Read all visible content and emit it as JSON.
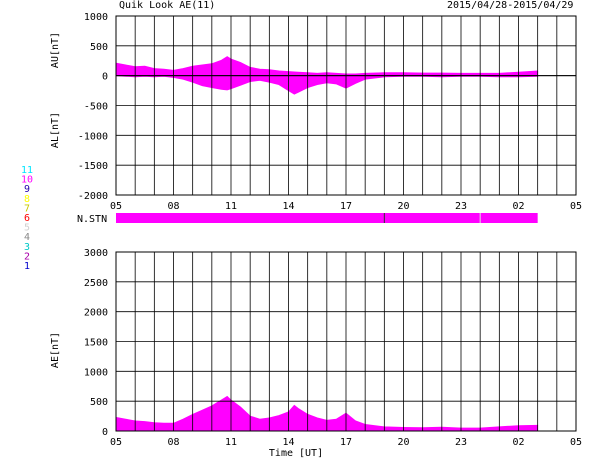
{
  "header": {
    "title": "Quik Look AE(11)",
    "date_range": "2015/04/28-2015/04/29"
  },
  "colors": {
    "fill": "#ff00ff",
    "grid": "#000000",
    "background": "#ffffff"
  },
  "station_count_legend": [
    {
      "label": "11",
      "color": "#00e5ff"
    },
    {
      "label": "10",
      "color": "#ff00ff"
    },
    {
      "label": "9",
      "color": "#2200aa"
    },
    {
      "label": "8",
      "color": "#ffff00"
    },
    {
      "label": "7",
      "color": "#c8c800"
    },
    {
      "label": "6",
      "color": "#ff0000"
    },
    {
      "label": "5",
      "color": "#d0d0d0"
    },
    {
      "label": "4",
      "color": "#888888"
    },
    {
      "label": "3",
      "color": "#00c8c8"
    },
    {
      "label": "2",
      "color": "#aa00aa"
    },
    {
      "label": "1",
      "color": "#0000cc"
    }
  ],
  "chart_data": [
    {
      "type": "area",
      "name": "au-al-panel",
      "ylabel_upper": "AU[nT]",
      "ylabel_lower": "AL[nT]",
      "ylim": [
        -2000,
        1000
      ],
      "yticks": [
        "1000",
        "500",
        "0",
        "-500",
        "-1000",
        "-1500",
        "-2000"
      ],
      "xticks": [
        "05",
        "08",
        "11",
        "14",
        "17",
        "20",
        "23",
        "02",
        "05"
      ],
      "x_range_hours": [
        5,
        29
      ],
      "grid": true,
      "series": [
        {
          "name": "AU",
          "x": [
            5.0,
            5.5,
            6.0,
            6.5,
            7.0,
            7.5,
            8.0,
            8.5,
            9.0,
            9.5,
            10.0,
            10.5,
            10.8,
            11.0,
            11.5,
            12.0,
            12.5,
            13.0,
            13.5,
            14.0,
            14.5,
            15.0,
            15.5,
            16.0,
            16.5,
            17.0,
            17.5,
            18.0,
            19.0,
            20.0,
            21.0,
            22.0,
            23.0,
            24.0,
            25.0,
            26.0,
            27.0
          ],
          "values": [
            210,
            180,
            150,
            160,
            120,
            110,
            90,
            120,
            160,
            180,
            200,
            260,
            320,
            280,
            220,
            140,
            110,
            100,
            80,
            70,
            60,
            50,
            40,
            50,
            40,
            30,
            30,
            40,
            50,
            50,
            45,
            45,
            40,
            40,
            40,
            60,
            80
          ]
        },
        {
          "name": "AL",
          "x": [
            5.0,
            5.5,
            6.0,
            6.5,
            7.0,
            7.5,
            8.0,
            8.5,
            9.0,
            9.5,
            10.0,
            10.5,
            10.8,
            11.0,
            11.5,
            12.0,
            12.5,
            13.0,
            13.5,
            14.0,
            14.3,
            14.5,
            15.0,
            15.5,
            16.0,
            16.5,
            17.0,
            17.5,
            18.0,
            19.0,
            20.0,
            21.0,
            22.0,
            23.0,
            24.0,
            25.0,
            26.0,
            27.0
          ],
          "values": [
            0,
            -10,
            -20,
            -10,
            -20,
            -10,
            -30,
            -60,
            -110,
            -170,
            -200,
            -230,
            -240,
            -220,
            -160,
            -100,
            -80,
            -110,
            -150,
            -250,
            -310,
            -280,
            -200,
            -150,
            -120,
            -140,
            -210,
            -130,
            -60,
            -20,
            -10,
            -10,
            -20,
            -10,
            -10,
            -20,
            -20,
            -10
          ]
        }
      ]
    },
    {
      "type": "bar",
      "name": "station-count-strip",
      "ylabel": "N.STN",
      "segments": [
        {
          "from_hour": 5.0,
          "to_hour": 27.0,
          "stations": 10
        }
      ]
    },
    {
      "type": "area",
      "name": "ae-panel",
      "ylabel": "AE[nT]",
      "xlabel": "Time [UT]",
      "ylim": [
        0,
        3000
      ],
      "yticks": [
        "3000",
        "2500",
        "2000",
        "1500",
        "1000",
        "500",
        "0"
      ],
      "xticks": [
        "05",
        "08",
        "11",
        "14",
        "17",
        "20",
        "23",
        "02",
        "05"
      ],
      "x_range_hours": [
        5,
        29
      ],
      "grid": true,
      "series": [
        {
          "name": "AE",
          "x": [
            5.0,
            5.5,
            6.0,
            6.5,
            7.0,
            7.5,
            8.0,
            8.5,
            9.0,
            9.5,
            10.0,
            10.5,
            10.8,
            11.0,
            11.5,
            12.0,
            12.5,
            13.0,
            13.5,
            14.0,
            14.3,
            14.5,
            15.0,
            15.5,
            16.0,
            16.5,
            17.0,
            17.5,
            18.0,
            19.0,
            20.0,
            21.0,
            22.0,
            23.0,
            24.0,
            25.0,
            26.0,
            27.0
          ],
          "values": [
            230,
            200,
            170,
            160,
            140,
            130,
            130,
            200,
            280,
            350,
            420,
            520,
            580,
            520,
            400,
            250,
            200,
            220,
            260,
            320,
            430,
            380,
            280,
            220,
            180,
            200,
            300,
            170,
            110,
            70,
            60,
            55,
            65,
            50,
            50,
            70,
            90,
            95
          ]
        }
      ]
    }
  ]
}
